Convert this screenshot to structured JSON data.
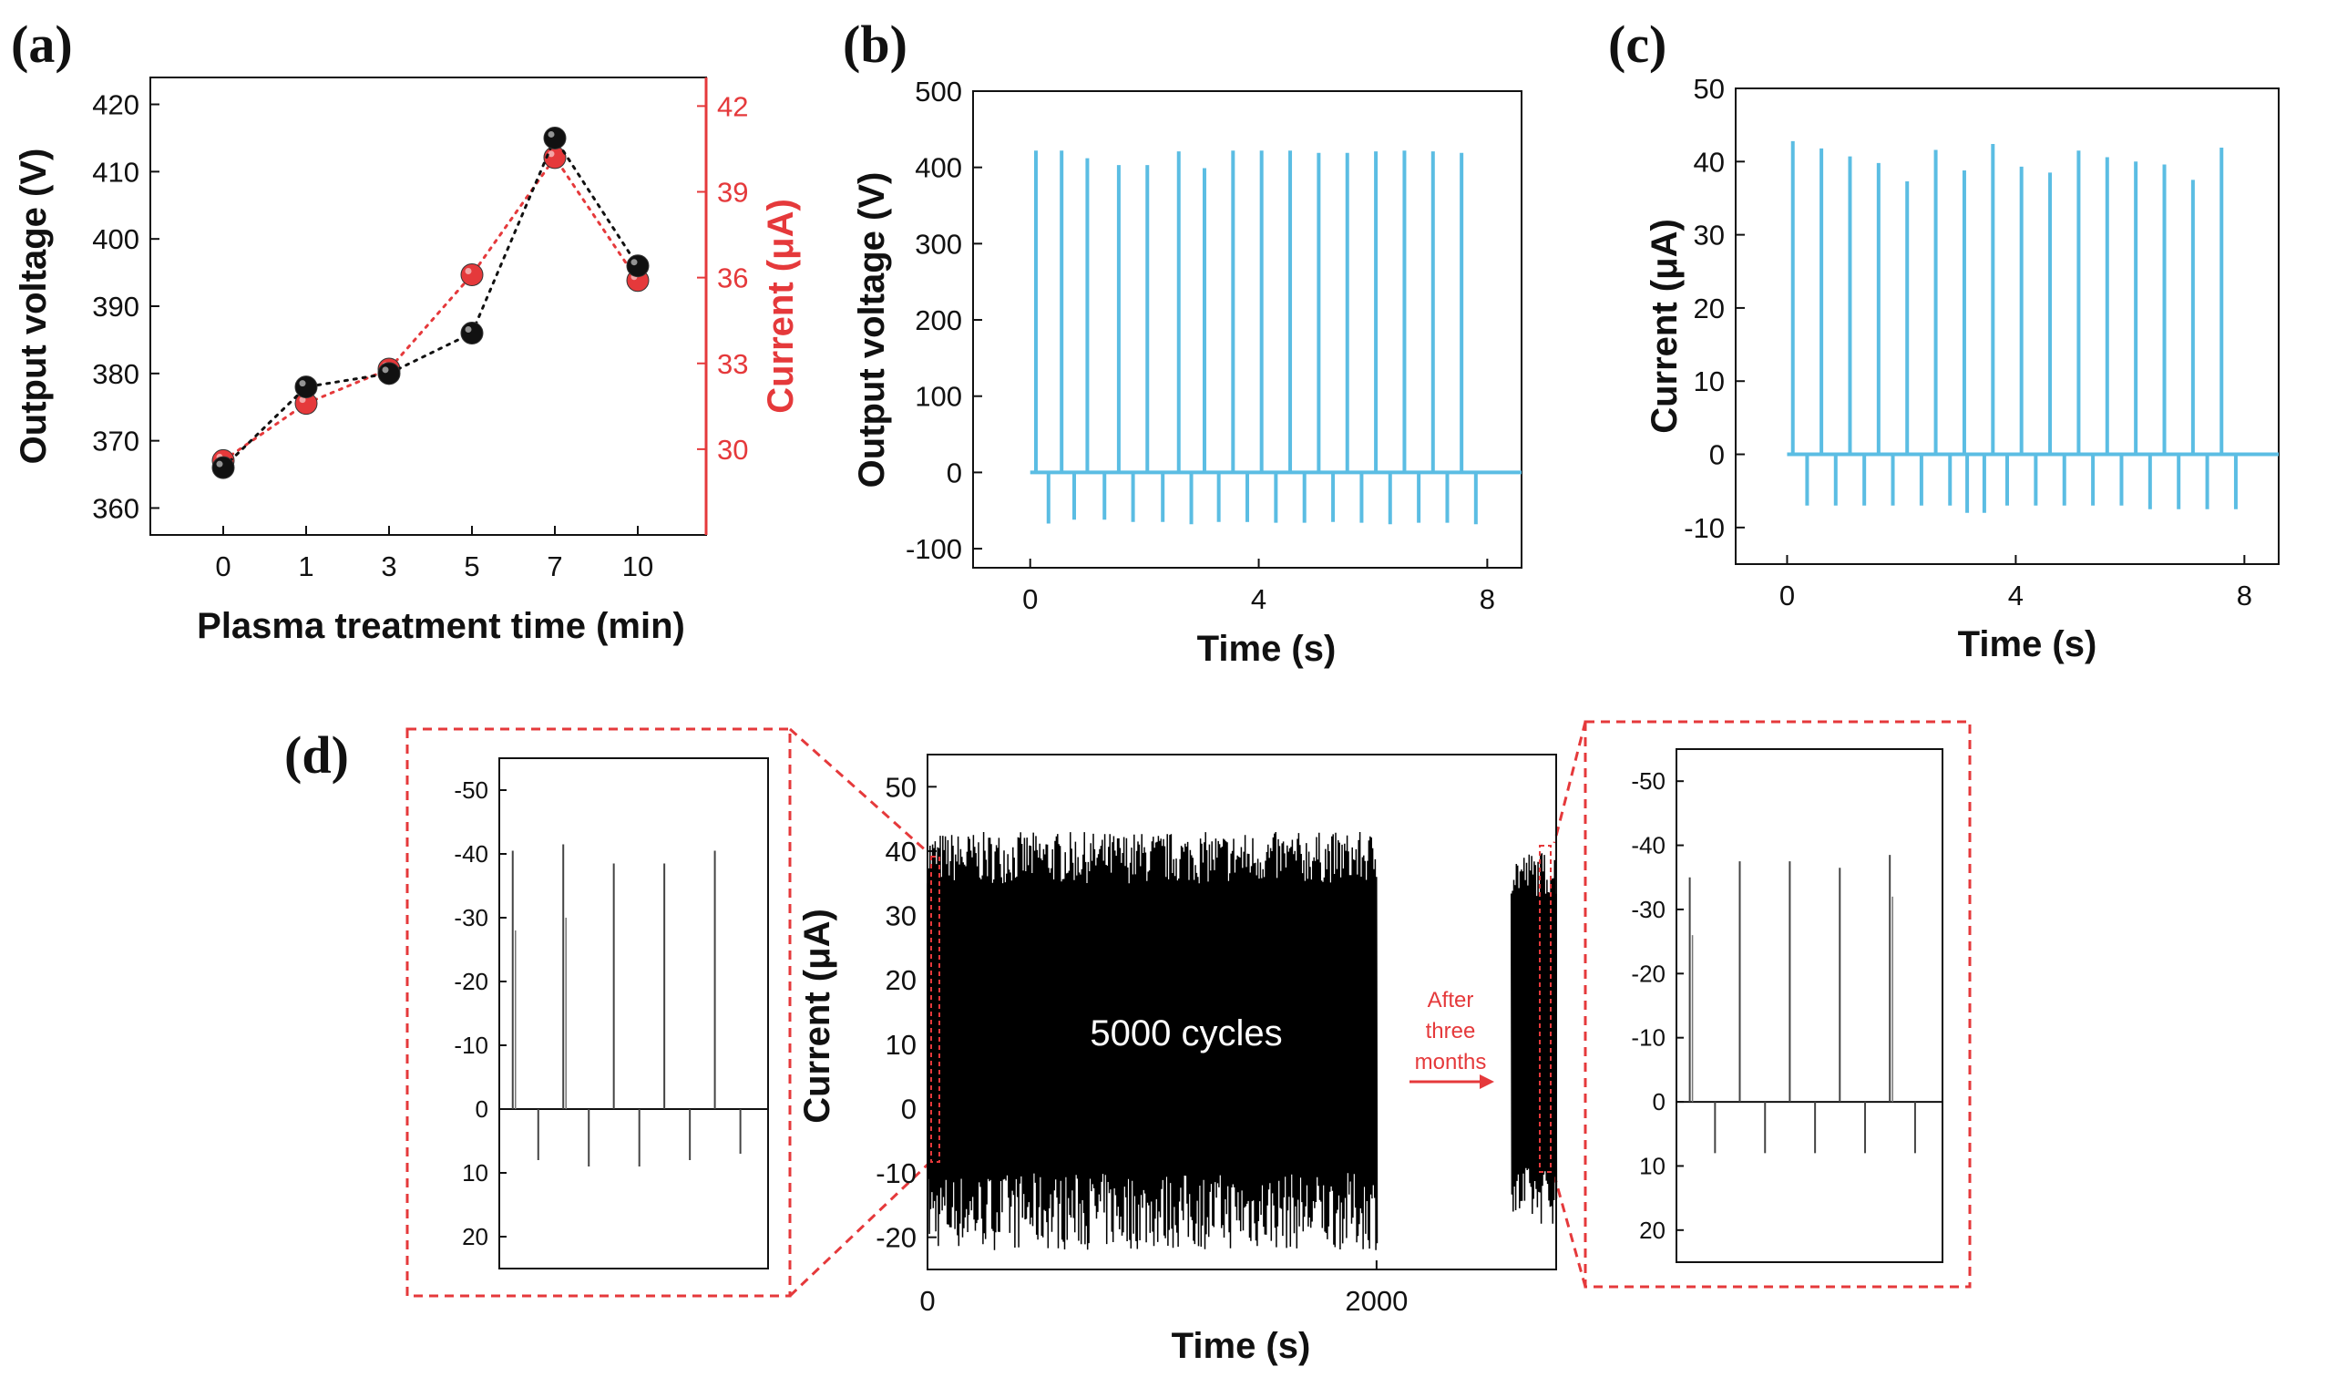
{
  "colors": {
    "voltage_series": "#111111",
    "current_series": "#e5393b",
    "current_axis": "#e5393b",
    "signal": "#5bbde3",
    "trace": "#000000",
    "zoom_frame": "#e5393b"
  },
  "chart_data": [
    {
      "panel": "(a)",
      "type": "scatter",
      "xlabel": "Plasma treatment time (min)",
      "ylabel": "Output voltage (V)",
      "y2label": "Current (μA)",
      "categories": [
        "0",
        "1",
        "3",
        "5",
        "7",
        "10"
      ],
      "ylim": [
        356,
        424
      ],
      "yticks": [
        360,
        370,
        380,
        390,
        400,
        410,
        420
      ],
      "y2lim": [
        27,
        43
      ],
      "y2ticks": [
        30,
        33,
        36,
        39,
        42
      ],
      "series": [
        {
          "axis": "left",
          "values": [
            366,
            378,
            380,
            386,
            415,
            396
          ]
        },
        {
          "axis": "right",
          "values": [
            29.6,
            31.6,
            32.8,
            36.1,
            40.2,
            35.9
          ]
        }
      ],
      "grid": false
    },
    {
      "panel": "(b)",
      "type": "line",
      "xlabel": "Time (s)",
      "ylabel": "Output voltage (V)",
      "xlim": [
        -1,
        8.6
      ],
      "xticks": [
        0,
        4,
        8
      ],
      "ylim": [
        -125,
        500
      ],
      "yticks": [
        -100,
        0,
        100,
        200,
        300,
        400,
        500
      ],
      "baseline_x": [
        0,
        8.6
      ],
      "positive_peaks": {
        "t": [
          0.1,
          0.55,
          1.0,
          1.55,
          2.05,
          2.6,
          3.05,
          3.55,
          4.05,
          4.55,
          5.05,
          5.55,
          6.05,
          6.55,
          7.05,
          7.55
        ],
        "values": [
          422,
          422,
          412,
          403,
          403,
          421,
          399,
          422,
          422,
          422,
          419,
          419,
          421,
          422,
          421,
          419
        ]
      },
      "negative_peaks": {
        "t": [
          0.32,
          0.77,
          1.3,
          1.8,
          2.32,
          2.82,
          3.3,
          3.8,
          4.3,
          4.8,
          5.3,
          5.8,
          6.3,
          6.8,
          7.3,
          7.8
        ],
        "values": [
          -67,
          -62,
          -62,
          -65,
          -65,
          -68,
          -65,
          -65,
          -66,
          -66,
          -65,
          -66,
          -68,
          -66,
          -66,
          -68
        ]
      }
    },
    {
      "panel": "(c)",
      "type": "line",
      "xlabel": "Time (s)",
      "ylabel": "Current (μA)",
      "xlim": [
        -0.9,
        8.6
      ],
      "xticks": [
        0,
        4,
        8
      ],
      "ylim": [
        -15,
        50
      ],
      "yticks": [
        -10,
        0,
        10,
        20,
        30,
        40,
        50
      ],
      "baseline_x": [
        0,
        8.6
      ],
      "positive_peaks": {
        "t": [
          0.1,
          0.6,
          1.1,
          1.6,
          2.1,
          2.6,
          3.1,
          3.6,
          4.1,
          4.6,
          5.1,
          5.6,
          6.1,
          6.6,
          7.1,
          7.6
        ],
        "values": [
          42.8,
          41.8,
          40.7,
          39.8,
          37.3,
          41.6,
          38.8,
          42.4,
          39.3,
          38.5,
          41.5,
          40.6,
          40.0,
          39.6,
          37.5,
          41.9
        ]
      },
      "negative_peaks": {
        "t": [
          0.35,
          0.85,
          1.35,
          1.85,
          2.35,
          2.85,
          3.15,
          3.45,
          3.85,
          4.35,
          4.85,
          5.35,
          5.85,
          6.35,
          6.85,
          7.35,
          7.85
        ],
        "values": [
          -7,
          -7,
          -7,
          -7,
          -7,
          -7,
          -8,
          -8,
          -7,
          -7,
          -7,
          -7,
          -7,
          -7.5,
          -7.5,
          -7.5,
          -7.5
        ]
      }
    },
    {
      "panel": "(d)",
      "type": "line",
      "xlabel": "Time (s)",
      "ylabel": "Current (μA)",
      "xlim": [
        0,
        2800
      ],
      "xticks": [
        0,
        2000
      ],
      "ylim": [
        -25,
        55
      ],
      "yticks": [
        -20,
        -10,
        0,
        10,
        20,
        30,
        40,
        50
      ],
      "annotation": "5000 cycles",
      "arrow_label": [
        "After",
        "three",
        "months"
      ],
      "segments": [
        {
          "x_range": [
            0,
            2000
          ],
          "positive_peak_range": [
            35,
            43
          ],
          "negative_peak_range": [
            -22,
            -10
          ],
          "n_cycles": 5000
        },
        {
          "x_range": [
            2600,
            2800
          ],
          "positive_peak_range": [
            33,
            40
          ],
          "negative_peak_range": [
            -18,
            -9
          ]
        }
      ],
      "insets": [
        {
          "position": "left",
          "yticks": [
            -50,
            -40,
            -30,
            -20,
            -10,
            0,
            10,
            20
          ],
          "ylim": [
            -55,
            25
          ],
          "pulse_values": [
            40.5,
            41.5,
            38.5,
            38.5,
            40.5
          ],
          "pulse_inner_values": [
            28,
            30,
            0,
            0,
            0
          ],
          "negative_values": [
            -8,
            -9,
            -9,
            -8,
            -7
          ]
        },
        {
          "position": "right",
          "yticks": [
            -50,
            -40,
            -30,
            -20,
            -10,
            0,
            10,
            20
          ],
          "ylim": [
            -55,
            25
          ],
          "pulse_values": [
            35,
            37.5,
            37.5,
            36.5,
            38.5
          ],
          "pulse_inner_values": [
            26,
            0,
            0,
            0,
            32
          ],
          "negative_values": [
            -8,
            -8,
            -8,
            -8,
            -8
          ]
        }
      ]
    }
  ]
}
